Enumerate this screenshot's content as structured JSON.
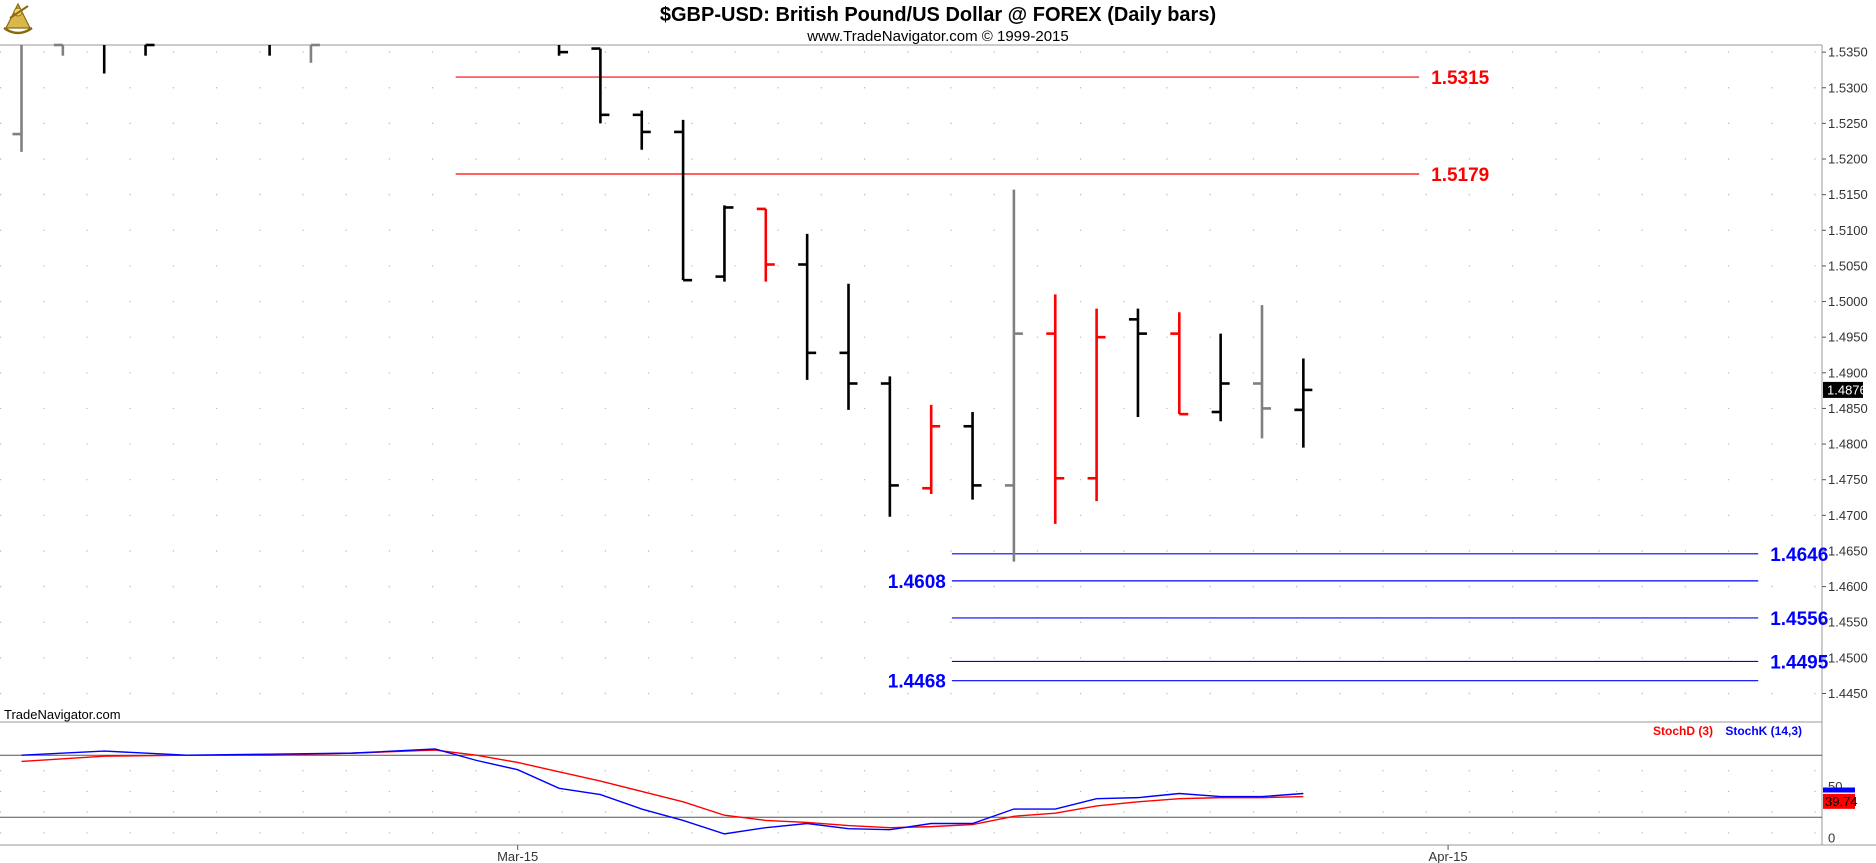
{
  "header": {
    "title": "$GBP-USD:  British Pound/US Dollar @ FOREX  (Daily bars)",
    "subtitle": "www.TradeNavigator.com © 1999-2015"
  },
  "watermark": "TradeNavigator.com",
  "logo_icon": "sextant-icon",
  "colors": {
    "up_bar": "#000000",
    "down_bar": "#ff0000",
    "neutral_bar": "#808080",
    "resistance": "#ff0000",
    "support": "#0000ff",
    "stoch_d": "#ff0000",
    "stoch_k": "#0000ff",
    "last_price_bg": "#000000",
    "stoch_last_bg": "#ff0000"
  },
  "chart_data": [
    {
      "type": "ohlc",
      "panel": "price",
      "ylim": [
        1.441,
        1.536
      ],
      "y_ticks": [
        "1.5350",
        "1.5300",
        "1.5250",
        "1.5200",
        "1.5150",
        "1.5100",
        "1.5050",
        "1.5000",
        "1.4950",
        "1.4900",
        "1.4850",
        "1.4800",
        "1.4750",
        "1.4700",
        "1.4650",
        "1.4600",
        "1.4550",
        "1.4500",
        "1.4450"
      ],
      "x_labels": [
        {
          "label": "Mar-15",
          "bar": 12
        },
        {
          "label": "Apr-15",
          "bar": 34.5
        }
      ],
      "last_price": "1.4876",
      "bars": [
        {
          "i": 0,
          "o": 1.5235,
          "h": 1.54,
          "l": 1.521,
          "c": 1.54,
          "color": "neutral"
        },
        {
          "i": 1,
          "o": 1.536,
          "h": 1.539,
          "l": 1.5345,
          "c": 1.537,
          "color": "neutral"
        },
        {
          "i": 2,
          "o": 1.537,
          "h": 1.54,
          "l": 1.532,
          "c": 1.5365,
          "color": "up"
        },
        {
          "i": 3,
          "o": 1.537,
          "h": 1.54,
          "l": 1.5345,
          "c": 1.536,
          "color": "up"
        },
        {
          "i": 6,
          "o": 1.537,
          "h": 1.54,
          "l": 1.5345,
          "c": 1.5365,
          "color": "up"
        },
        {
          "i": 7,
          "o": 1.5365,
          "h": 1.54,
          "l": 1.5335,
          "c": 1.536,
          "color": "neutral"
        },
        {
          "i": 13,
          "o": 1.537,
          "h": 1.54,
          "l": 1.5345,
          "c": 1.535,
          "color": "up"
        },
        {
          "i": 14,
          "o": 1.5355,
          "h": 1.5355,
          "l": 1.525,
          "c": 1.5262,
          "color": "up"
        },
        {
          "i": 15,
          "o": 1.5262,
          "h": 1.5268,
          "l": 1.5213,
          "c": 1.5238,
          "color": "up"
        },
        {
          "i": 16,
          "o": 1.5238,
          "h": 1.5255,
          "l": 1.503,
          "c": 1.503,
          "color": "up"
        },
        {
          "i": 17,
          "o": 1.5035,
          "h": 1.5135,
          "l": 1.5028,
          "c": 1.5132,
          "color": "up"
        },
        {
          "i": 18,
          "o": 1.513,
          "h": 1.513,
          "l": 1.5028,
          "c": 1.5052,
          "color": "down"
        },
        {
          "i": 19,
          "o": 1.5052,
          "h": 1.5095,
          "l": 1.489,
          "c": 1.4928,
          "color": "up"
        },
        {
          "i": 20,
          "o": 1.4928,
          "h": 1.5025,
          "l": 1.4848,
          "c": 1.4885,
          "color": "up"
        },
        {
          "i": 21,
          "o": 1.4885,
          "h": 1.4895,
          "l": 1.4698,
          "c": 1.4742,
          "color": "up"
        },
        {
          "i": 22,
          "o": 1.4738,
          "h": 1.4855,
          "l": 1.473,
          "c": 1.4825,
          "color": "down"
        },
        {
          "i": 23,
          "o": 1.4825,
          "h": 1.4845,
          "l": 1.4722,
          "c": 1.4742,
          "color": "up"
        },
        {
          "i": 24,
          "o": 1.4742,
          "h": 1.5157,
          "l": 1.4635,
          "c": 1.4955,
          "color": "neutral"
        },
        {
          "i": 25,
          "o": 1.4955,
          "h": 1.501,
          "l": 1.4688,
          "c": 1.4752,
          "color": "down"
        },
        {
          "i": 26,
          "o": 1.4752,
          "h": 1.499,
          "l": 1.472,
          "c": 1.495,
          "color": "down"
        },
        {
          "i": 27,
          "o": 1.4975,
          "h": 1.499,
          "l": 1.4838,
          "c": 1.4955,
          "color": "up"
        },
        {
          "i": 28,
          "o": 1.4955,
          "h": 1.4985,
          "l": 1.4842,
          "c": 1.4842,
          "color": "down"
        },
        {
          "i": 29,
          "o": 1.4845,
          "h": 1.4955,
          "l": 1.4832,
          "c": 1.4885,
          "color": "up"
        },
        {
          "i": 30,
          "o": 1.4885,
          "h": 1.4995,
          "l": 1.4808,
          "c": 1.485,
          "color": "neutral"
        },
        {
          "i": 31,
          "o": 1.4848,
          "h": 1.492,
          "l": 1.4795,
          "c": 1.4876,
          "color": "up"
        }
      ],
      "levels": [
        {
          "label": "1.5315",
          "value": 1.5315,
          "kind": "resistance",
          "from_bar": 10.5,
          "to_bar": 33.8,
          "label_side": "right"
        },
        {
          "label": "1.5179",
          "value": 1.5179,
          "kind": "resistance",
          "from_bar": 10.5,
          "to_bar": 33.8,
          "label_side": "right"
        },
        {
          "label": "1.4646",
          "value": 1.4646,
          "kind": "support",
          "from_bar": 22.5,
          "to_bar": 42,
          "label_side": "right"
        },
        {
          "label": "1.4608",
          "value": 1.4608,
          "kind": "support",
          "from_bar": 22.5,
          "to_bar": 42,
          "label_side": "left"
        },
        {
          "label": "1.4556",
          "value": 1.4556,
          "kind": "support",
          "from_bar": 22.5,
          "to_bar": 42,
          "label_side": "right"
        },
        {
          "label": "1.4495",
          "value": 1.4495,
          "kind": "support",
          "from_bar": 22.5,
          "to_bar": 42,
          "label_side": "right"
        },
        {
          "label": "1.4468",
          "value": 1.4468,
          "kind": "support",
          "from_bar": 22.5,
          "to_bar": 42,
          "label_side": "left"
        }
      ]
    },
    {
      "type": "line",
      "panel": "stochastic",
      "ylim": [
        0,
        100
      ],
      "y_ticks": [
        "50",
        "0"
      ],
      "ref_lines": [
        80,
        20
      ],
      "legend": [
        "StochD (3)",
        "StochK (14,3)"
      ],
      "last_value_label": "39.74",
      "x": [
        0,
        2,
        4,
        6,
        8,
        10,
        11,
        12,
        13,
        14,
        15,
        16,
        17,
        18,
        19,
        20,
        21,
        22,
        23,
        24,
        25,
        26,
        27,
        28,
        29,
        30,
        31
      ],
      "series": [
        {
          "name": "StochD (3)",
          "color": "#ff0000",
          "values": [
            74,
            79,
            80,
            80,
            82,
            85,
            80,
            73,
            64,
            55,
            45,
            35,
            22,
            17,
            15,
            12,
            10,
            11,
            13,
            21,
            24,
            31,
            35,
            38,
            39,
            39,
            40
          ]
        },
        {
          "name": "StochK (14,3)",
          "color": "#0000ff",
          "values": [
            80,
            84,
            80,
            81,
            82,
            86,
            75,
            66,
            48,
            42,
            28,
            17,
            4,
            10,
            14,
            9,
            8,
            14,
            14,
            28,
            28,
            38,
            39,
            43,
            40,
            40,
            43
          ]
        }
      ]
    }
  ]
}
